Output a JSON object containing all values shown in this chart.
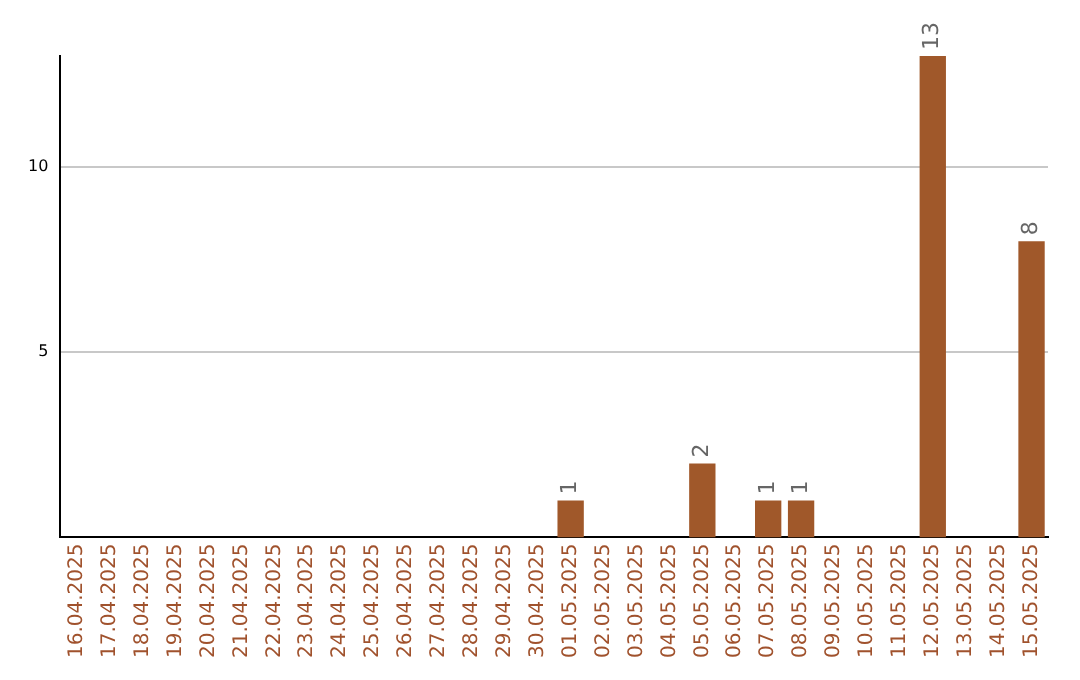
{
  "chart_data": {
    "type": "bar",
    "categories": [
      "16.04.2025",
      "17.04.2025",
      "18.04.2025",
      "19.04.2025",
      "20.04.2025",
      "21.04.2025",
      "22.04.2025",
      "23.04.2025",
      "24.04.2025",
      "25.04.2025",
      "26.04.2025",
      "27.04.2025",
      "28.04.2025",
      "29.04.2025",
      "30.04.2025",
      "01.05.2025",
      "02.05.2025",
      "03.05.2025",
      "04.05.2025",
      "05.05.2025",
      "06.05.2025",
      "07.05.2025",
      "08.05.2025",
      "09.05.2025",
      "10.05.2025",
      "11.05.2025",
      "12.05.2025",
      "13.05.2025",
      "14.05.2025",
      "15.05.2025"
    ],
    "values": [
      0,
      0,
      0,
      0,
      0,
      0,
      0,
      0,
      0,
      0,
      0,
      0,
      0,
      0,
      0,
      1,
      0,
      0,
      0,
      2,
      0,
      1,
      1,
      0,
      0,
      0,
      13,
      0,
      0,
      8
    ],
    "color": "#a0582a",
    "value_labels": [
      null,
      null,
      null,
      null,
      null,
      null,
      null,
      null,
      null,
      null,
      null,
      null,
      null,
      null,
      null,
      "1",
      null,
      null,
      null,
      "2",
      null,
      "1",
      "1",
      null,
      null,
      null,
      "13",
      null,
      null,
      "8"
    ],
    "ylim": [
      0,
      13
    ],
    "yticks": [
      5,
      10
    ],
    "grid": "y",
    "legend": false
  }
}
